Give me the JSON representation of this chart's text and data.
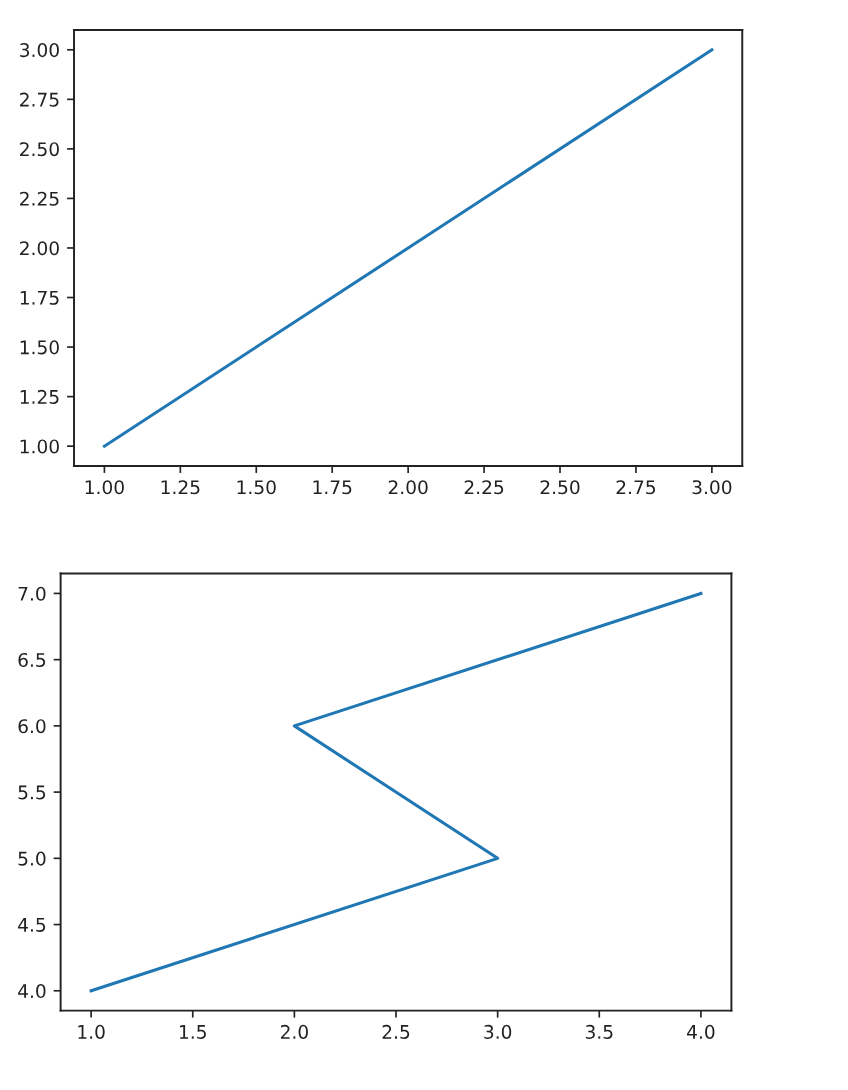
{
  "chart_data": [
    {
      "type": "line",
      "x": [
        1,
        2,
        3
      ],
      "values": [
        1,
        2,
        3
      ],
      "color": "#1f77b4",
      "xlim": [
        0.9,
        3.1
      ],
      "ylim": [
        0.9,
        3.1
      ],
      "xticks": [
        {
          "value": 1,
          "label": "1.00"
        },
        {
          "value": 1.25,
          "label": "1.25"
        },
        {
          "value": 1.5,
          "label": "1.50"
        },
        {
          "value": 1.75,
          "label": "1.75"
        },
        {
          "value": 2,
          "label": "2.00"
        },
        {
          "value": 2.25,
          "label": "2.25"
        },
        {
          "value": 2.5,
          "label": "2.50"
        },
        {
          "value": 2.75,
          "label": "2.75"
        },
        {
          "value": 3,
          "label": "3.00"
        }
      ],
      "yticks": [
        {
          "value": 1,
          "label": "1.00"
        },
        {
          "value": 1.25,
          "label": "1.25"
        },
        {
          "value": 1.5,
          "label": "1.50"
        },
        {
          "value": 1.75,
          "label": "1.75"
        },
        {
          "value": 2,
          "label": "2.00"
        },
        {
          "value": 2.25,
          "label": "2.25"
        },
        {
          "value": 2.5,
          "label": "2.50"
        },
        {
          "value": 2.75,
          "label": "2.75"
        },
        {
          "value": 3,
          "label": "3.00"
        }
      ]
    },
    {
      "type": "line",
      "x": [
        1,
        3,
        2,
        4
      ],
      "values": [
        4,
        5,
        6,
        7
      ],
      "color": "#1f77b4",
      "xlim": [
        0.85,
        4.15
      ],
      "ylim": [
        3.85,
        7.15
      ],
      "xticks": [
        {
          "value": 1,
          "label": "1.0"
        },
        {
          "value": 1.5,
          "label": "1.5"
        },
        {
          "value": 2,
          "label": "2.0"
        },
        {
          "value": 2.5,
          "label": "2.5"
        },
        {
          "value": 3,
          "label": "3.0"
        },
        {
          "value": 3.5,
          "label": "3.5"
        },
        {
          "value": 4,
          "label": "4.0"
        }
      ],
      "yticks": [
        {
          "value": 4,
          "label": "4.0"
        },
        {
          "value": 4.5,
          "label": "4.5"
        },
        {
          "value": 5,
          "label": "5.0"
        },
        {
          "value": 5.5,
          "label": "5.5"
        },
        {
          "value": 6,
          "label": "6.0"
        },
        {
          "value": 6.5,
          "label": "6.5"
        },
        {
          "value": 7,
          "label": "7.0"
        }
      ]
    }
  ]
}
